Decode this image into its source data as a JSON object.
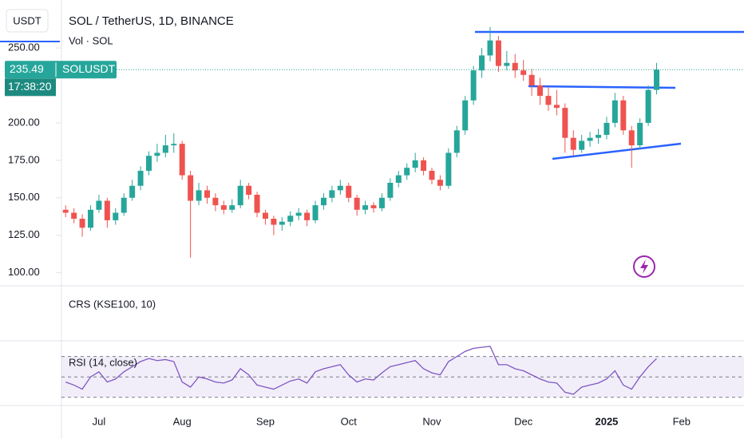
{
  "chart_data": [
    {
      "type": "candlestick",
      "title": "SOL / TetherUS, 1D, BINANCE",
      "subtitle": "Vol · SOL",
      "currency": "USDT",
      "symbol": "SOLUSDT",
      "last_price": 235.49,
      "countdown": "17:38:20",
      "up_color": "#26a69a",
      "down_color": "#ef5350",
      "ylim": [
        95,
        282
      ],
      "yticks": [
        {
          "value": 100,
          "label": "100.00"
        },
        {
          "value": 125,
          "label": "125.00"
        },
        {
          "value": 150,
          "label": "150.00"
        },
        {
          "value": 175,
          "label": "175.00"
        },
        {
          "value": 200,
          "label": "200.00"
        },
        {
          "value": 250,
          "label": "250.00"
        }
      ],
      "categories": [
        null,
        null,
        null,
        null,
        "Jul",
        null,
        null,
        null,
        null,
        null,
        null,
        null,
        null,
        null,
        "Aug",
        null,
        null,
        null,
        null,
        null,
        null,
        null,
        null,
        null,
        "Sep",
        null,
        null,
        null,
        null,
        null,
        null,
        null,
        null,
        null,
        "Oct",
        null,
        null,
        null,
        null,
        null,
        null,
        null,
        null,
        null,
        "Nov",
        null,
        null,
        null,
        null,
        null,
        null,
        null,
        null,
        null,
        null,
        "Dec",
        null,
        null,
        null,
        null,
        null,
        null,
        null,
        null,
        null,
        "2025",
        null,
        null,
        null,
        null,
        null,
        null,
        null,
        null,
        "Feb",
        null,
        null,
        null,
        null,
        null,
        null,
        null
      ],
      "series": [
        {
          "name": "SOLUSDT",
          "values": [
            [
              142,
              145,
              137,
              140
            ],
            [
              140,
              143,
              133,
              136
            ],
            [
              136,
              139,
              124,
              130
            ],
            [
              130,
              145,
              128,
              142
            ],
            [
              142,
              152,
              140,
              148
            ],
            [
              148,
              150,
              130,
              135
            ],
            [
              135,
              143,
              132,
              140
            ],
            [
              140,
              153,
              138,
              150
            ],
            [
              150,
              162,
              148,
              158
            ],
            [
              158,
              171,
              155,
              168
            ],
            [
              168,
              181,
              165,
              178
            ],
            [
              178,
              186,
              174,
              180
            ],
            [
              180,
              192,
              177,
              185
            ],
            [
              185,
              193,
              180,
              186
            ],
            [
              186,
              188,
              162,
              165
            ],
            [
              165,
              168,
              110,
              148
            ],
            [
              148,
              160,
              145,
              155
            ],
            [
              155,
              158,
              146,
              150
            ],
            [
              150,
              153,
              141,
              145
            ],
            [
              145,
              148,
              139,
              142
            ],
            [
              142,
              149,
              140,
              145
            ],
            [
              145,
              162,
              143,
              158
            ],
            [
              158,
              160,
              149,
              152
            ],
            [
              152,
              154,
              137,
              140
            ],
            [
              140,
              142,
              132,
              136
            ],
            [
              136,
              138,
              125,
              132
            ],
            [
              132,
              137,
              128,
              134
            ],
            [
              134,
              141,
              131,
              138
            ],
            [
              138,
              143,
              135,
              140
            ],
            [
              140,
              142,
              131,
              135
            ],
            [
              135,
              148,
              133,
              145
            ],
            [
              145,
              153,
              142,
              150
            ],
            [
              150,
              158,
              147,
              155
            ],
            [
              155,
              162,
              152,
              158
            ],
            [
              158,
              160,
              147,
              150
            ],
            [
              150,
              152,
              138,
              142
            ],
            [
              142,
              148,
              139,
              145
            ],
            [
              145,
              147,
              140,
              143
            ],
            [
              143,
              153,
              141,
              150
            ],
            [
              150,
              163,
              148,
              160
            ],
            [
              160,
              168,
              157,
              165
            ],
            [
              165,
              173,
              162,
              170
            ],
            [
              170,
              180,
              167,
              175
            ],
            [
              175,
              177,
              165,
              168
            ],
            [
              168,
              170,
              159,
              162
            ],
            [
              162,
              165,
              155,
              158
            ],
            [
              158,
              183,
              156,
              180
            ],
            [
              180,
              198,
              177,
              195
            ],
            [
              195,
              218,
              192,
              215
            ],
            [
              215,
              238,
              212,
              235
            ],
            [
              235,
              250,
              230,
              245
            ],
            [
              245,
              264,
              241,
              255
            ],
            [
              255,
              258,
              234,
              238
            ],
            [
              238,
              248,
              235,
              240
            ],
            [
              240,
              246,
              230,
              235
            ],
            [
              235,
              242,
              228,
              232
            ],
            [
              232,
              236,
              218,
              225
            ],
            [
              225,
              230,
              212,
              218
            ],
            [
              218,
              224,
              208,
              212
            ],
            [
              212,
              222,
              205,
              210
            ],
            [
              210,
              213,
              180,
              190
            ],
            [
              190,
              195,
              178,
              182
            ],
            [
              182,
              192,
              180,
              188
            ],
            [
              188,
              194,
              184,
              190
            ],
            [
              190,
              196,
              186,
              192
            ],
            [
              192,
              204,
              189,
              200
            ],
            [
              200,
              220,
              197,
              215
            ],
            [
              215,
              218,
              192,
              195
            ],
            [
              195,
              198,
              170,
              185
            ],
            [
              185,
              203,
              182,
              200
            ],
            [
              200,
              225,
              198,
              222
            ],
            [
              222,
              240,
              219,
              235.49
            ],
            null,
            null,
            null,
            null,
            null,
            null,
            null,
            null,
            null,
            null
          ]
        }
      ]
    },
    {
      "type": "line",
      "title": "CRS (KSE100, 10)"
    },
    {
      "type": "line",
      "title": "RSI (14, close)",
      "ylim": [
        22,
        83
      ],
      "ygrid": [
        30,
        50,
        70
      ],
      "color": "#7e57c2",
      "values": [
        45,
        42,
        38,
        50,
        55,
        45,
        48,
        55,
        60,
        65,
        68,
        66,
        67,
        65,
        45,
        40,
        50,
        48,
        45,
        44,
        47,
        58,
        52,
        42,
        40,
        38,
        42,
        46,
        48,
        44,
        55,
        58,
        60,
        62,
        52,
        45,
        48,
        47,
        54,
        60,
        62,
        64,
        66,
        58,
        54,
        52,
        65,
        70,
        75,
        78,
        79,
        80,
        62,
        62,
        58,
        56,
        52,
        48,
        45,
        44,
        35,
        33,
        40,
        42,
        44,
        48,
        56,
        42,
        38,
        50,
        60,
        68,
        null,
        null,
        null,
        null,
        null,
        null,
        null,
        null,
        null,
        null
      ]
    }
  ]
}
